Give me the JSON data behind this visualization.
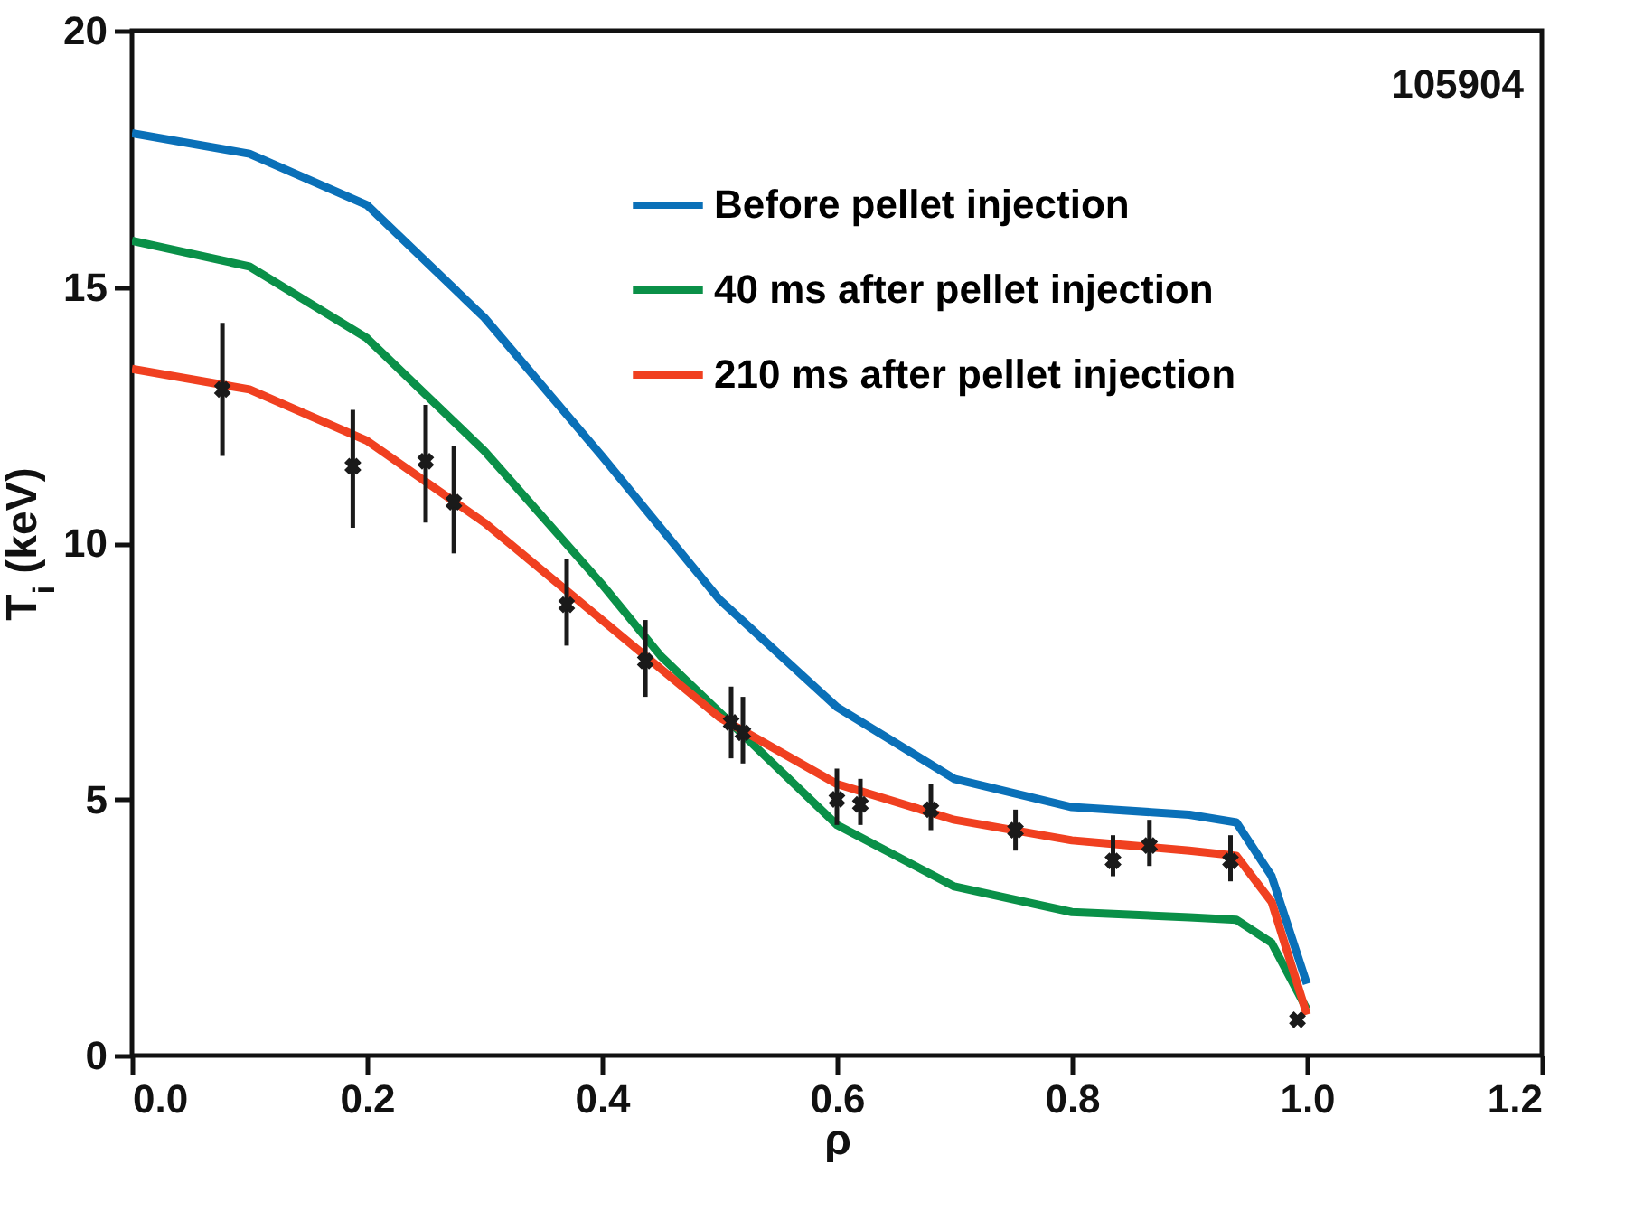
{
  "chart_data": {
    "type": "line",
    "xlabel": "ρ",
    "ylabel": "T$_{i}$ (keV)",
    "xlim": [
      0,
      1.2
    ],
    "xticks": [
      {
        "value": 0,
        "label": "0.0"
      },
      {
        "value": 0.2,
        "label": "0.2"
      },
      {
        "value": 0.4,
        "label": "0.4"
      },
      {
        "value": 0.6,
        "label": "0.6"
      },
      {
        "value": 0.8,
        "label": "0.8"
      },
      {
        "value": 1,
        "label": "1.0"
      },
      {
        "value": 1.2,
        "label": "1.2"
      }
    ],
    "ylim": [
      0,
      20
    ],
    "yticks": [
      0,
      5,
      10,
      15,
      20
    ],
    "grid": false,
    "legend": "top right",
    "line_style": "solid",
    "annotations": [
      {
        "text": "105904"
      }
    ],
    "series": [
      {
        "name": "Before pellet injection",
        "color": "#0a70b8",
        "x": [
          0,
          0.1,
          0.2,
          0.3,
          0.4,
          0.5,
          0.6,
          0.7,
          0.8,
          0.9,
          0.94,
          0.97,
          1.0
        ],
        "values": [
          18.0,
          17.6,
          16.6,
          14.4,
          11.7,
          8.9,
          6.8,
          5.4,
          4.85,
          4.7,
          4.55,
          3.5,
          1.4
        ]
      },
      {
        "name": "40 ms after pellet injection",
        "color": "#0a9048",
        "x": [
          0,
          0.1,
          0.2,
          0.3,
          0.4,
          0.45,
          0.5,
          0.6,
          0.7,
          0.8,
          0.9,
          0.94,
          0.97,
          1.0
        ],
        "values": [
          15.9,
          15.4,
          14.0,
          11.8,
          9.2,
          7.8,
          6.7,
          4.5,
          3.3,
          2.8,
          2.7,
          2.65,
          2.2,
          0.9
        ]
      },
      {
        "name": "210 ms after pellet injection",
        "color": "#f04020",
        "x": [
          0,
          0.1,
          0.2,
          0.3,
          0.4,
          0.5,
          0.6,
          0.7,
          0.8,
          0.9,
          0.94,
          0.97,
          1.0
        ],
        "values": [
          13.4,
          13.0,
          12.0,
          10.4,
          8.5,
          6.6,
          5.3,
          4.6,
          4.2,
          4.0,
          3.9,
          3.0,
          0.8
        ]
      },
      {
        "type": "scatter",
        "marker": "cross",
        "color": "#1a1a1a",
        "x": [
          0.077,
          0.188,
          0.25,
          0.274,
          0.37,
          0.437,
          0.51,
          0.52,
          0.6,
          0.62,
          0.68,
          0.752,
          0.835,
          0.866,
          0.935,
          0.992
        ],
        "values": [
          13.0,
          11.5,
          11.6,
          10.8,
          8.8,
          7.7,
          6.5,
          6.3,
          5.0,
          4.9,
          4.8,
          4.4,
          3.8,
          4.1,
          3.8,
          0.7
        ],
        "errors": [
          [
            11.7,
            14.3
          ],
          [
            10.3,
            12.6
          ],
          [
            10.4,
            12.7
          ],
          [
            9.8,
            11.9
          ],
          [
            8.0,
            9.7
          ],
          [
            7.0,
            8.5
          ],
          [
            5.8,
            7.2
          ],
          [
            5.7,
            7.0
          ],
          [
            4.5,
            5.6
          ],
          [
            4.5,
            5.4
          ],
          [
            4.4,
            5.3
          ],
          [
            4.0,
            4.8
          ],
          [
            3.5,
            4.3
          ],
          [
            3.7,
            4.6
          ],
          [
            3.4,
            4.3
          ],
          null
        ]
      }
    ]
  }
}
